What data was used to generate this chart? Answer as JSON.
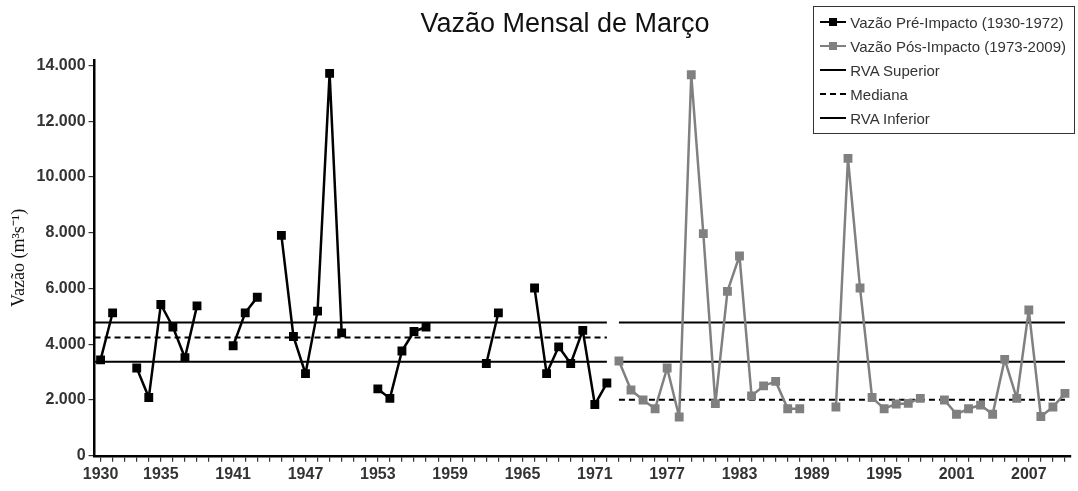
{
  "chart_data": {
    "type": "line",
    "title": "Vazão Mensal de Março",
    "ylabel": "Vazão (m³s⁻¹)",
    "xlim": [
      1929.5,
      2010.5
    ],
    "xticks": [
      1930,
      {
        "value": 1931,
        "label": null
      },
      {
        "value": 1932,
        "label": null
      },
      {
        "value": 1933,
        "label": null
      },
      {
        "value": 1934,
        "label": null
      },
      1935,
      {
        "value": 1936,
        "label": null
      },
      {
        "value": 1937,
        "label": null
      },
      {
        "value": 1938,
        "label": null
      },
      {
        "value": 1939,
        "label": null
      },
      {
        "value": 1940,
        "label": null
      },
      1941,
      {
        "value": 1942,
        "label": null
      },
      {
        "value": 1943,
        "label": null
      },
      {
        "value": 1944,
        "label": null
      },
      {
        "value": 1945,
        "label": null
      },
      {
        "value": 1946,
        "label": null
      },
      1947,
      {
        "value": 1948,
        "label": null
      },
      {
        "value": 1949,
        "label": null
      },
      {
        "value": 1950,
        "label": null
      },
      {
        "value": 1951,
        "label": null
      },
      {
        "value": 1952,
        "label": null
      },
      1953,
      {
        "value": 1954,
        "label": null
      },
      {
        "value": 1955,
        "label": null
      },
      {
        "value": 1956,
        "label": null
      },
      {
        "value": 1957,
        "label": null
      },
      {
        "value": 1958,
        "label": null
      },
      1959,
      {
        "value": 1960,
        "label": null
      },
      {
        "value": 1961,
        "label": null
      },
      {
        "value": 1962,
        "label": null
      },
      {
        "value": 1963,
        "label": null
      },
      {
        "value": 1964,
        "label": null
      },
      1965,
      {
        "value": 1966,
        "label": null
      },
      {
        "value": 1967,
        "label": null
      },
      {
        "value": 1968,
        "label": null
      },
      {
        "value": 1969,
        "label": null
      },
      {
        "value": 1970,
        "label": null
      },
      1971,
      {
        "value": 1972,
        "label": null
      },
      {
        "value": 1973,
        "label": null
      },
      {
        "value": 1974,
        "label": null
      },
      {
        "value": 1975,
        "label": null
      },
      {
        "value": 1976,
        "label": null
      },
      1977,
      {
        "value": 1978,
        "label": null
      },
      {
        "value": 1979,
        "label": null
      },
      {
        "value": 1980,
        "label": null
      },
      {
        "value": 1981,
        "label": null
      },
      {
        "value": 1982,
        "label": null
      },
      1983,
      {
        "value": 1984,
        "label": null
      },
      {
        "value": 1985,
        "label": null
      },
      {
        "value": 1986,
        "label": null
      },
      {
        "value": 1987,
        "label": null
      },
      {
        "value": 1988,
        "label": null
      },
      1989,
      {
        "value": 1990,
        "label": null
      },
      {
        "value": 1991,
        "label": null
      },
      {
        "value": 1992,
        "label": null
      },
      {
        "value": 1993,
        "label": null
      },
      {
        "value": 1994,
        "label": null
      },
      1995,
      {
        "value": 1996,
        "label": null
      },
      {
        "value": 1997,
        "label": null
      },
      {
        "value": 1998,
        "label": null
      },
      {
        "value": 1999,
        "label": null
      },
      {
        "value": 2000,
        "label": null
      },
      2001,
      {
        "value": 2002,
        "label": null
      },
      {
        "value": 2003,
        "label": null
      },
      {
        "value": 2004,
        "label": null
      },
      {
        "value": 2005,
        "label": null
      },
      {
        "value": 2006,
        "label": null
      },
      2007,
      {
        "value": 2008,
        "label": null
      },
      {
        "value": 2009,
        "label": null
      },
      {
        "value": 2010,
        "label": null
      }
    ],
    "ylim": [
      0,
      14200
    ],
    "yticks": [
      {
        "value": 0,
        "label": "0"
      },
      {
        "value": 2000,
        "label": "2.000"
      },
      {
        "value": 4000,
        "label": "4.000"
      },
      {
        "value": 6000,
        "label": "6.000"
      },
      {
        "value": 8000,
        "label": "8.000"
      },
      {
        "value": 10000,
        "label": "10.000"
      },
      {
        "value": 12000,
        "label": "12.000"
      },
      {
        "value": 14000,
        "label": "14.000"
      }
    ],
    "legend": "top right",
    "series": [
      {
        "name": "Vazão Pré-Impacto (1930-1972)",
        "color": "#000000",
        "marker": "square",
        "line_style": "solid",
        "x": [
          1930,
          1931,
          1932,
          1933,
          1934,
          1935,
          1936,
          1937,
          1938,
          1939,
          1940,
          1941,
          1942,
          1943,
          1944,
          1945,
          1946,
          1947,
          1948,
          1949,
          1950,
          1951,
          1952,
          1953,
          1954,
          1955,
          1956,
          1957,
          1958,
          1959,
          1960,
          1961,
          1962,
          1963,
          1964,
          1965,
          1966,
          1967,
          1968,
          1969,
          1970,
          1971,
          1972
        ],
        "values": [
          3440,
          5130,
          null,
          3150,
          2090,
          5430,
          4620,
          3520,
          5380,
          null,
          null,
          3950,
          5130,
          5690,
          null,
          7910,
          4280,
          2950,
          5190,
          13720,
          4410,
          null,
          null,
          2400,
          2060,
          3760,
          4460,
          4620,
          null,
          null,
          null,
          null,
          3310,
          5130,
          null,
          null,
          6020,
          2950,
          3910,
          3310,
          4500,
          1840,
          2610
        ]
      },
      {
        "name": "Vazão Pós-Impacto (1973-2009)",
        "color": "#808080",
        "marker": "square",
        "line_style": "solid",
        "x": [
          1973,
          1974,
          1975,
          1976,
          1977,
          1978,
          1979,
          1980,
          1981,
          1982,
          1983,
          1984,
          1985,
          1986,
          1987,
          1988,
          1989,
          1990,
          1991,
          1992,
          1993,
          1994,
          1995,
          1996,
          1997,
          1998,
          1999,
          2000,
          2001,
          2002,
          2003,
          2004,
          2005,
          2006,
          2007,
          2008,
          2009,
          2010
        ],
        "values": [
          3400,
          2360,
          2000,
          1690,
          3150,
          1390,
          13670,
          7970,
          1870,
          5900,
          7170,
          2150,
          2510,
          2670,
          1690,
          1690,
          null,
          null,
          1750,
          10670,
          6020,
          2090,
          1690,
          1860,
          1880,
          2060,
          null,
          2000,
          1490,
          1690,
          1820,
          1490,
          3460,
          2060,
          5230,
          1410,
          1750,
          2240
        ]
      },
      {
        "name": "RVA Superior",
        "color": "#000000",
        "marker": "none",
        "line_style": "solid",
        "x": [
          1929.5,
          1972,
          1972.5,
          1973,
          2010
        ],
        "values": [
          4780,
          4780,
          null,
          4780,
          4780
        ]
      },
      {
        "name": "Mediana",
        "color": "#000000",
        "marker": "none",
        "line_style": "dashed",
        "x": [
          1929.5,
          1972,
          1972.5,
          1973,
          2010
        ],
        "values": [
          4240,
          4240,
          null,
          2010,
          2010
        ]
      },
      {
        "name": "RVA Inferior",
        "color": "#000000",
        "marker": "none",
        "line_style": "solid",
        "x": [
          1929.5,
          1972,
          1972.5,
          1973,
          2010
        ],
        "values": [
          3370,
          3370,
          null,
          3370,
          3370
        ]
      }
    ]
  }
}
